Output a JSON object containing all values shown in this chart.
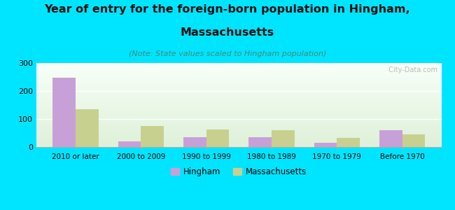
{
  "title_line1": "Year of entry for the foreign-born population in Hingham,",
  "title_line2": "Massachusetts",
  "subtitle": "(Note: State values scaled to Hingham population)",
  "categories": [
    "2010 or later",
    "2000 to 2009",
    "1990 to 1999",
    "1980 to 1989",
    "1970 to 1979",
    "Before 1970"
  ],
  "hingham_values": [
    248,
    20,
    35,
    35,
    15,
    60
  ],
  "massachusetts_values": [
    135,
    75,
    62,
    60,
    33,
    45
  ],
  "hingham_color": "#c8a0d8",
  "massachusetts_color": "#c8d090",
  "background_color": "#00e5ff",
  "ylim": [
    0,
    300
  ],
  "yticks": [
    0,
    100,
    200,
    300
  ],
  "title_fontsize": 11.5,
  "subtitle_fontsize": 8,
  "watermark": "  City-Data.com",
  "bar_width": 0.35
}
